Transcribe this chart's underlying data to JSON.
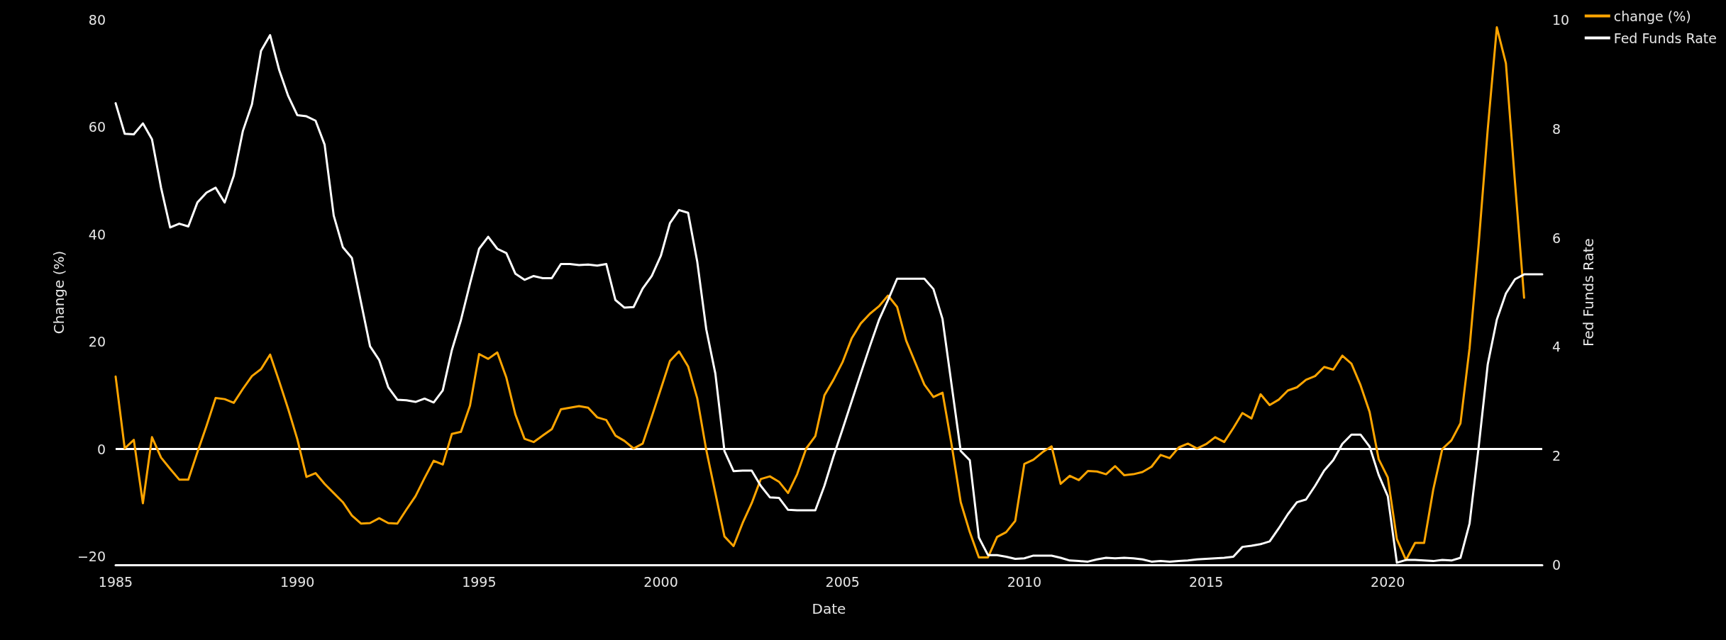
{
  "chart_data": {
    "type": "line",
    "xlabel": "Date",
    "ylabel": "Change (%)",
    "y2label": "Fed Funds Rate",
    "xlim": [
      1985,
      2024.25
    ],
    "xticks": [
      1985,
      1990,
      1995,
      2000,
      2005,
      2010,
      2015,
      2020
    ],
    "ylim": [
      -21.6,
      80
    ],
    "yticks": [
      {
        "value": -20,
        "label": "−20"
      },
      0,
      20,
      40,
      60,
      80
    ],
    "y2lim": [
      0,
      10
    ],
    "y2ticks": [
      0,
      2,
      4,
      6,
      8,
      10
    ],
    "grid": false,
    "legend": "top right",
    "marker": "none",
    "line_style": "solid",
    "ref_lines": [
      {
        "axis": "y",
        "value": 0,
        "color": "#ffffff"
      }
    ],
    "series": [
      {
        "name": "change (%)",
        "color": "#ffa500",
        "x": [
          1985,
          1985.25,
          1985.5,
          1985.75,
          1986,
          1986.25,
          1986.5,
          1986.75,
          1987,
          1987.25,
          1987.5,
          1987.75,
          1988,
          1988.25,
          1988.5,
          1988.75,
          1989,
          1989.25,
          1989.5,
          1989.75,
          1990,
          1990.25,
          1990.5,
          1990.75,
          1991,
          1991.25,
          1991.5,
          1991.75,
          1992,
          1992.25,
          1992.5,
          1992.75,
          1993,
          1993.25,
          1993.5,
          1993.75,
          1994,
          1994.25,
          1994.5,
          1994.75,
          1995,
          1995.25,
          1995.5,
          1995.75,
          1996,
          1996.25,
          1996.5,
          1996.75,
          1997,
          1997.25,
          1997.5,
          1997.75,
          1998,
          1998.25,
          1998.5,
          1998.75,
          1999,
          1999.25,
          1999.5,
          1999.75,
          2000,
          2000.25,
          2000.5,
          2000.75,
          2001,
          2001.25,
          2001.5,
          2001.75,
          2002,
          2002.25,
          2002.5,
          2002.75,
          2003,
          2003.25,
          2003.5,
          2003.75,
          2004,
          2004.25,
          2004.5,
          2004.75,
          2005,
          2005.25,
          2005.5,
          2005.75,
          2006,
          2006.25,
          2006.5,
          2006.75,
          2007,
          2007.25,
          2007.5,
          2007.75,
          2008,
          2008.25,
          2008.5,
          2008.75,
          2009,
          2009.25,
          2009.5,
          2009.75,
          2010,
          2010.25,
          2010.5,
          2010.75,
          2011,
          2011.25,
          2011.5,
          2011.75,
          2012,
          2012.25,
          2012.5,
          2012.75,
          2013,
          2013.25,
          2013.5,
          2013.75,
          2014,
          2014.25,
          2014.5,
          2014.75,
          2015,
          2015.25,
          2015.5,
          2015.75,
          2016,
          2016.25,
          2016.5,
          2016.75,
          2017,
          2017.25,
          2017.5,
          2017.75,
          2018,
          2018.25,
          2018.5,
          2018.75,
          2019,
          2019.25,
          2019.5,
          2019.75,
          2020,
          2020.25,
          2020.5,
          2020.75,
          2021,
          2021.25,
          2021.5,
          2021.75,
          2022,
          2022.25,
          2022.5,
          2022.75,
          2023,
          2023.25,
          2023.5,
          2023.75
        ],
        "values": [
          13.5,
          0.1,
          1.7,
          -10.1,
          2.2,
          -1.6,
          -3.7,
          -5.7,
          -5.7,
          -0.6,
          4.3,
          9.5,
          9.3,
          8.6,
          11.2,
          13.6,
          14.9,
          17.6,
          12.6,
          7.4,
          1.8,
          -5.2,
          -4.5,
          -6.5,
          -8.2,
          -9.9,
          -12.4,
          -13.9,
          -13.8,
          -12.9,
          -13.8,
          -13.9,
          -11.3,
          -8.8,
          -5.4,
          -2.2,
          -2.9,
          2.8,
          3.2,
          8.1,
          17.7,
          16.8,
          18.0,
          13.3,
          6.4,
          1.9,
          1.3,
          2.5,
          3.7,
          7.4,
          7.7,
          8.0,
          7.7,
          5.9,
          5.4,
          2.5,
          1.5,
          0.1,
          1.0,
          6.0,
          11.2,
          16.4,
          18.2,
          15.4,
          9.5,
          -0.2,
          -8.2,
          -16.3,
          -18.1,
          -13.8,
          -10.1,
          -5.6,
          -5.1,
          -6.1,
          -8.2,
          -4.7,
          0.1,
          2.4,
          10.0,
          12.9,
          16.2,
          20.6,
          23.4,
          25.2,
          26.6,
          28.6,
          26.5,
          20.2,
          16.1,
          12.0,
          9.7,
          10.5,
          0.8,
          -9.9,
          -15.5,
          -20.2,
          -20.2,
          -16.4,
          -15.5,
          -13.4,
          -2.8,
          -2.0,
          -0.6,
          0.5,
          -6.5,
          -5.0,
          -5.8,
          -4.1,
          -4.2,
          -4.7,
          -3.2,
          -4.9,
          -4.7,
          -4.3,
          -3.3,
          -1.1,
          -1.7,
          0.3,
          1.0,
          0.1,
          0.9,
          2.2,
          1.3,
          3.9,
          6.7,
          5.7,
          10.2,
          8.2,
          9.2,
          10.9,
          11.5,
          12.9,
          13.6,
          15.3,
          14.8,
          17.4,
          15.9,
          11.9,
          6.9,
          -1.9,
          -5.3,
          -16.8,
          -20.7,
          -17.5,
          -17.5,
          -7.6,
          0,
          1.6,
          4.8,
          18.8,
          38.2,
          59.6,
          78.6,
          71.9,
          49.7,
          28.2
        ]
      },
      {
        "name": "Fed Funds Rate",
        "color": "#ffffff",
        "axis": "y2",
        "x": [
          1985,
          1985.25,
          1985.5,
          1985.75,
          1986,
          1986.25,
          1986.5,
          1986.75,
          1987,
          1987.25,
          1987.5,
          1987.75,
          1988,
          1988.25,
          1988.5,
          1988.75,
          1989,
          1989.25,
          1989.5,
          1989.75,
          1990,
          1990.25,
          1990.5,
          1990.75,
          1991,
          1991.25,
          1991.5,
          1991.75,
          1992,
          1992.25,
          1992.5,
          1992.75,
          1993,
          1993.25,
          1993.5,
          1993.75,
          1994,
          1994.25,
          1994.5,
          1994.75,
          1995,
          1995.25,
          1995.5,
          1995.75,
          1996,
          1996.25,
          1996.5,
          1996.75,
          1997,
          1997.25,
          1997.5,
          1997.75,
          1998,
          1998.25,
          1998.5,
          1998.75,
          1999,
          1999.25,
          1999.5,
          1999.75,
          2000,
          2000.25,
          2000.5,
          2000.75,
          2001,
          2001.25,
          2001.5,
          2001.75,
          2002,
          2002.25,
          2002.5,
          2002.75,
          2003,
          2003.25,
          2003.5,
          2003.75,
          2004,
          2004.25,
          2004.5,
          2004.75,
          2005,
          2005.25,
          2005.5,
          2005.75,
          2006,
          2006.25,
          2006.5,
          2006.75,
          2007,
          2007.25,
          2007.5,
          2007.75,
          2008,
          2008.25,
          2008.5,
          2008.75,
          2009,
          2009.25,
          2009.5,
          2009.75,
          2010,
          2010.25,
          2010.5,
          2010.75,
          2011,
          2011.25,
          2011.5,
          2011.75,
          2012,
          2012.25,
          2012.5,
          2012.75,
          2013,
          2013.25,
          2013.5,
          2013.75,
          2014,
          2014.25,
          2014.5,
          2014.75,
          2015,
          2015.25,
          2015.5,
          2015.75,
          2016,
          2016.25,
          2016.5,
          2016.75,
          2017,
          2017.25,
          2017.5,
          2017.75,
          2018,
          2018.25,
          2018.5,
          2018.75,
          2019,
          2019.25,
          2019.5,
          2019.75,
          2020,
          2020.25,
          2020.5,
          2020.75,
          2021,
          2021.25,
          2021.5,
          2021.75,
          2022,
          2022.25,
          2022.5,
          2022.75,
          2023,
          2023.25,
          2023.5,
          2023.75,
          2024,
          2024.25
        ],
        "values": [
          8.47,
          7.91,
          7.9,
          8.1,
          7.81,
          6.92,
          6.19,
          6.26,
          6.21,
          6.65,
          6.83,
          6.92,
          6.65,
          7.14,
          7.96,
          8.45,
          9.43,
          9.72,
          9.08,
          8.6,
          8.25,
          8.23,
          8.15,
          7.71,
          6.41,
          5.83,
          5.63,
          4.82,
          4.01,
          3.76,
          3.26,
          3.03,
          3.02,
          2.99,
          3.05,
          2.98,
          3.2,
          3.94,
          4.49,
          5.16,
          5.8,
          6.02,
          5.8,
          5.72,
          5.34,
          5.23,
          5.3,
          5.26,
          5.26,
          5.52,
          5.52,
          5.5,
          5.51,
          5.49,
          5.52,
          4.86,
          4.72,
          4.73,
          5.07,
          5.3,
          5.67,
          6.27,
          6.51,
          6.46,
          5.57,
          4.32,
          3.51,
          2.09,
          1.72,
          1.73,
          1.73,
          1.45,
          1.24,
          1.23,
          1.01,
          1.0,
          1.0,
          1.0,
          1.45,
          1.99,
          2.49,
          3.0,
          3.51,
          4.01,
          4.49,
          4.86,
          5.25,
          5.25,
          5.25,
          5.25,
          5.06,
          4.51,
          3.3,
          2.09,
          1.92,
          0.5,
          0.18,
          0.18,
          0.15,
          0.11,
          0.12,
          0.17,
          0.17,
          0.17,
          0.13,
          0.08,
          0.07,
          0.06,
          0.1,
          0.13,
          0.12,
          0.13,
          0.12,
          0.1,
          0.06,
          0.07,
          0.06,
          0.07,
          0.08,
          0.1,
          0.11,
          0.12,
          0.13,
          0.15,
          0.33,
          0.35,
          0.38,
          0.43,
          0.67,
          0.93,
          1.15,
          1.2,
          1.45,
          1.73,
          1.92,
          2.22,
          2.39,
          2.39,
          2.17,
          1.65,
          1.26,
          0.04,
          0.09,
          0.09,
          0.08,
          0.07,
          0.09,
          0.08,
          0.13,
          0.76,
          2.16,
          3.68,
          4.5,
          4.98,
          5.24,
          5.33,
          5.33,
          5.33
        ]
      }
    ]
  }
}
